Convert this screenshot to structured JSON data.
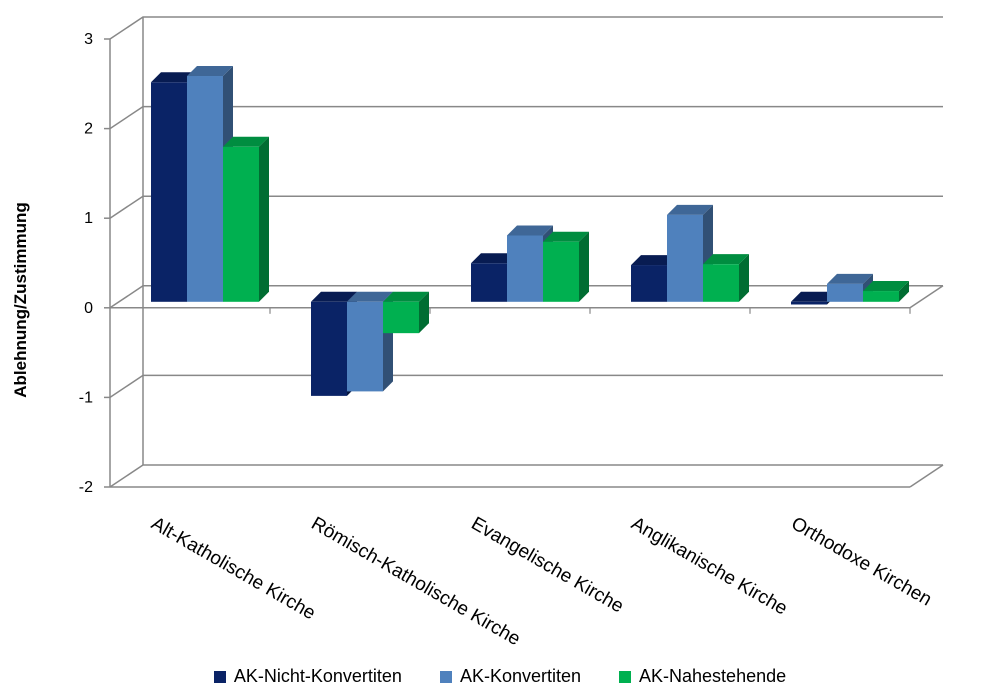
{
  "chart_data": {
    "type": "bar",
    "categories": [
      "Alt-Katholische Kirche",
      "Römisch-Katholische Kirche",
      "Evangelische Kirche",
      "Anglikanische Kirche",
      "Orthodoxe Kirchen"
    ],
    "series": [
      {
        "name": "AK-Nicht-Konvertiten",
        "values": [
          2.45,
          -1.05,
          0.43,
          0.41,
          -0.03
        ],
        "color": "#0a2366"
      },
      {
        "name": "AK-Konvertiten",
        "values": [
          2.52,
          -1.0,
          0.74,
          0.97,
          0.2
        ],
        "color": "#4f81bd"
      },
      {
        "name": "AK-Nahestehende",
        "values": [
          1.73,
          -0.35,
          0.67,
          0.42,
          0.12
        ],
        "color": "#00b050"
      }
    ],
    "ylabel": "Ablehnung/Zustimmung",
    "ylim": [
      -2,
      3
    ],
    "yticks": [
      "3",
      "2",
      "1",
      "0",
      "-1",
      "-2"
    ],
    "grid": true,
    "legend_position": "bottom"
  }
}
